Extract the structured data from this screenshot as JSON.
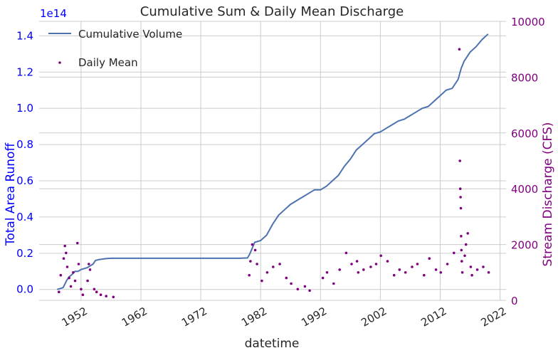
{
  "chart_data": {
    "type": "line+scatter",
    "title": "Cumulative Sum & Daily Mean Discharge",
    "xlabel": "datetime",
    "ylabel_left": "Total Area Runoff",
    "ylabel_right": "Stream Discharge (CFS)",
    "left_offset_label": "1e14",
    "x_ticks": [
      "1952",
      "1962",
      "1972",
      "1982",
      "1992",
      "2002",
      "2012",
      "2022"
    ],
    "y_left_ticks": [
      "0.0",
      "0.2",
      "0.4",
      "0.6",
      "0.8",
      "1.0",
      "1.2",
      "1.4"
    ],
    "y_right_ticks": [
      "0",
      "2000",
      "4000",
      "6000",
      "8000",
      "10000"
    ],
    "xlim": [
      1945,
      2023
    ],
    "ylim_left": [
      -0.06,
      1.48
    ],
    "ylim_right": [
      0,
      10000
    ],
    "grid": true,
    "legend_position": "upper-left",
    "colors": {
      "cumulative": "#4c72b0",
      "daily": "#800080",
      "left_axis": "#0000ff",
      "right_axis": "#800080"
    },
    "series": [
      {
        "name": "Cumulative Volume",
        "kind": "line",
        "axis": "left",
        "x": [
          1948.0,
          1949.0,
          1949.6,
          1950.0,
          1950.4,
          1951.0,
          1951.5,
          1952.0,
          1953.0,
          1954.0,
          1954.4,
          1955.0,
          1956.0,
          1957.0,
          1958.0,
          1960.0,
          1965.0,
          1970.0,
          1975.0,
          1978.5,
          1979.8,
          1980.1,
          1980.5,
          1981.0,
          1982.0,
          1983.0,
          1984.0,
          1985.0,
          1986.0,
          1987.0,
          1988.0,
          1989.0,
          1990.0,
          1991.0,
          1992.0,
          1993.0,
          1994.0,
          1995.0,
          1996.0,
          1997.0,
          1998.0,
          1999.0,
          2000.0,
          2001.0,
          2002.0,
          2003.0,
          2004.0,
          2005.0,
          2006.0,
          2007.0,
          2008.0,
          2009.0,
          2010.0,
          2011.0,
          2012.0,
          2013.0,
          2014.0,
          2015.0,
          2015.5,
          2016.0,
          2017.0,
          2018.0,
          2019.0,
          2020.0
        ],
        "y": [
          0.0,
          0.01,
          0.05,
          0.07,
          0.08,
          0.1,
          0.1,
          0.11,
          0.12,
          0.14,
          0.16,
          0.165,
          0.17,
          0.172,
          0.172,
          0.172,
          0.172,
          0.172,
          0.172,
          0.172,
          0.174,
          0.19,
          0.22,
          0.26,
          0.27,
          0.3,
          0.36,
          0.41,
          0.44,
          0.47,
          0.49,
          0.51,
          0.53,
          0.55,
          0.55,
          0.57,
          0.6,
          0.63,
          0.68,
          0.72,
          0.77,
          0.8,
          0.83,
          0.86,
          0.87,
          0.89,
          0.91,
          0.93,
          0.94,
          0.96,
          0.98,
          1.0,
          1.01,
          1.04,
          1.07,
          1.1,
          1.11,
          1.16,
          1.22,
          1.26,
          1.31,
          1.34,
          1.38,
          1.41
        ]
      },
      {
        "name": "Daily Mean",
        "kind": "scatter",
        "axis": "right",
        "x": [
          1948.3,
          1948.6,
          1949.1,
          1949.3,
          1949.5,
          1949.7,
          1950.0,
          1950.3,
          1950.7,
          1951.0,
          1951.4,
          1951.6,
          1952.0,
          1952.3,
          1953.1,
          1953.3,
          1953.5,
          1954.2,
          1954.6,
          1955.3,
          1956.2,
          1957.4,
          1980.1,
          1980.3,
          1980.6,
          1981.1,
          1981.4,
          1982.2,
          1983.1,
          1984.1,
          1985.2,
          1986.3,
          1987.1,
          1988.2,
          1989.4,
          1990.2,
          1992.4,
          1993.1,
          1994.2,
          1995.2,
          1996.3,
          1997.2,
          1998.1,
          1998.3,
          1999.2,
          2000.4,
          2001.3,
          2002.1,
          2003.2,
          2004.3,
          2005.2,
          2006.2,
          2007.3,
          2008.2,
          2009.3,
          2010.2,
          2011.3,
          2012.1,
          2013.2,
          2014.3,
          2015.2,
          2015.3,
          2015.35,
          2015.4,
          2015.45,
          2015.5,
          2015.55,
          2015.6,
          2015.7,
          2016.1,
          2016.3,
          2016.6,
          2017.1,
          2017.3,
          2018.2,
          2019.2,
          2020.1
        ],
        "y": [
          300,
          900,
          1500,
          1950,
          1700,
          1200,
          800,
          500,
          1000,
          700,
          2050,
          1300,
          400,
          200,
          700,
          1300,
          1100,
          400,
          300,
          200,
          150,
          120,
          900,
          1400,
          2000,
          1800,
          1300,
          700,
          1000,
          1200,
          1300,
          800,
          600,
          400,
          500,
          350,
          800,
          1000,
          600,
          1100,
          1700,
          1300,
          1400,
          1000,
          1100,
          1200,
          1300,
          1600,
          1400,
          900,
          1100,
          1000,
          1200,
          1300,
          900,
          1500,
          1100,
          1000,
          1300,
          1700,
          9000,
          5000,
          4000,
          3700,
          3300,
          2300,
          1800,
          1400,
          1000,
          1600,
          2000,
          2400,
          1200,
          900,
          1100,
          1200,
          1000
        ]
      }
    ]
  }
}
